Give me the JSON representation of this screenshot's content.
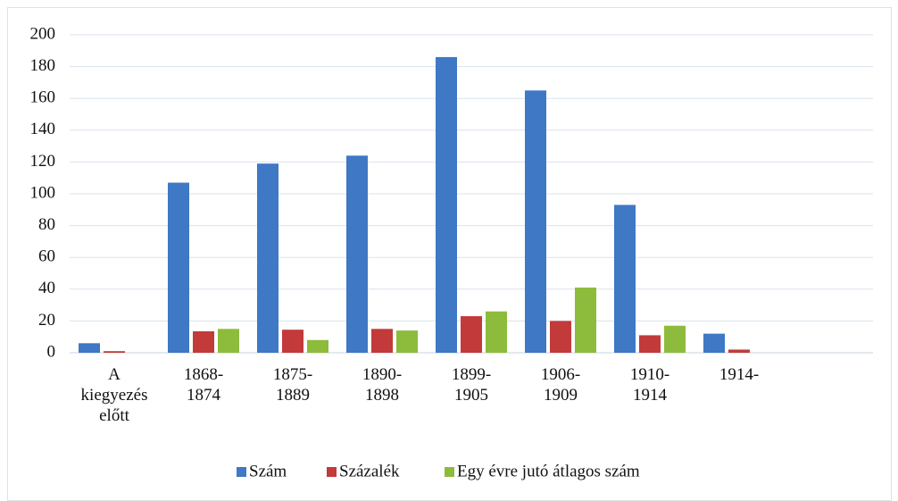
{
  "chart_data": {
    "type": "bar",
    "categories": [
      "A kiegyezés előtt",
      "1868-1874",
      "1875-1889",
      "1890-1898",
      "1899-1905",
      "1906-1909",
      "1910-1914",
      "1914-",
      null
    ],
    "series": [
      {
        "name": "Szám",
        "color": "#3f78c4",
        "values": [
          6,
          107,
          119,
          124,
          186,
          165,
          93,
          12,
          null
        ]
      },
      {
        "name": "Százalék",
        "color": "#c33a3a",
        "values": [
          1,
          13.5,
          14.5,
          15,
          23,
          20,
          11,
          2,
          null
        ]
      },
      {
        "name": "Egy évre jutó átlagos szám",
        "color": "#8dbb3c",
        "values": [
          null,
          15,
          8,
          14,
          26,
          41,
          17,
          null,
          null
        ]
      }
    ],
    "ylim": [
      0,
      200
    ],
    "yticks": [
      0,
      20,
      40,
      60,
      80,
      100,
      120,
      140,
      160,
      180,
      200
    ],
    "grid": true,
    "legend": "bottom"
  }
}
